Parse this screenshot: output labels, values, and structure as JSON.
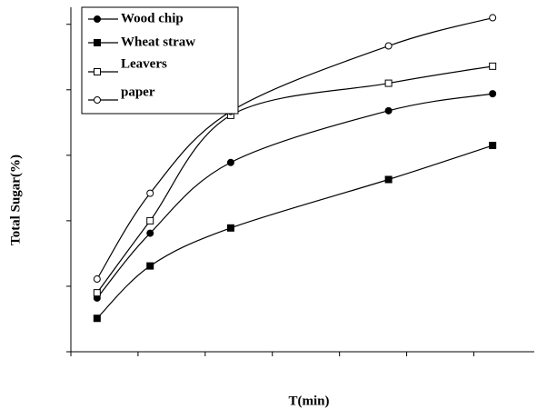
{
  "chart_data": {
    "type": "line",
    "xlabel": "T(min)",
    "ylabel": "Total Sugar(%)",
    "x": [
      0.39,
      1.18,
      2.38,
      4.73,
      6.28
    ],
    "series": [
      {
        "name": "Wood chip",
        "color": "#000000",
        "marker": "filled-circle",
        "values": [
          0.82,
          1.81,
          2.89,
          3.68,
          3.94
        ]
      },
      {
        "name": "Wheat straw",
        "color": "#000000",
        "marker": "filled-square",
        "values": [
          0.51,
          1.31,
          1.89,
          2.63,
          3.15
        ]
      },
      {
        "name": "Leavers",
        "color": "#000000",
        "marker": "open-square",
        "values": [
          0.9,
          2.0,
          3.61,
          4.1,
          4.36
        ]
      },
      {
        "name": "paper",
        "color": "#000000",
        "marker": "open-circle",
        "values": [
          1.11,
          2.42,
          3.67,
          4.67,
          5.1
        ]
      }
    ],
    "xlim": [
      0,
      6.9
    ],
    "xticks": [
      0,
      1,
      2,
      3,
      4,
      5,
      6
    ],
    "ylim": [
      0,
      5.26
    ],
    "yticks": [
      0,
      1,
      2,
      3,
      4,
      5
    ],
    "grid": false,
    "legend": "upper left"
  }
}
